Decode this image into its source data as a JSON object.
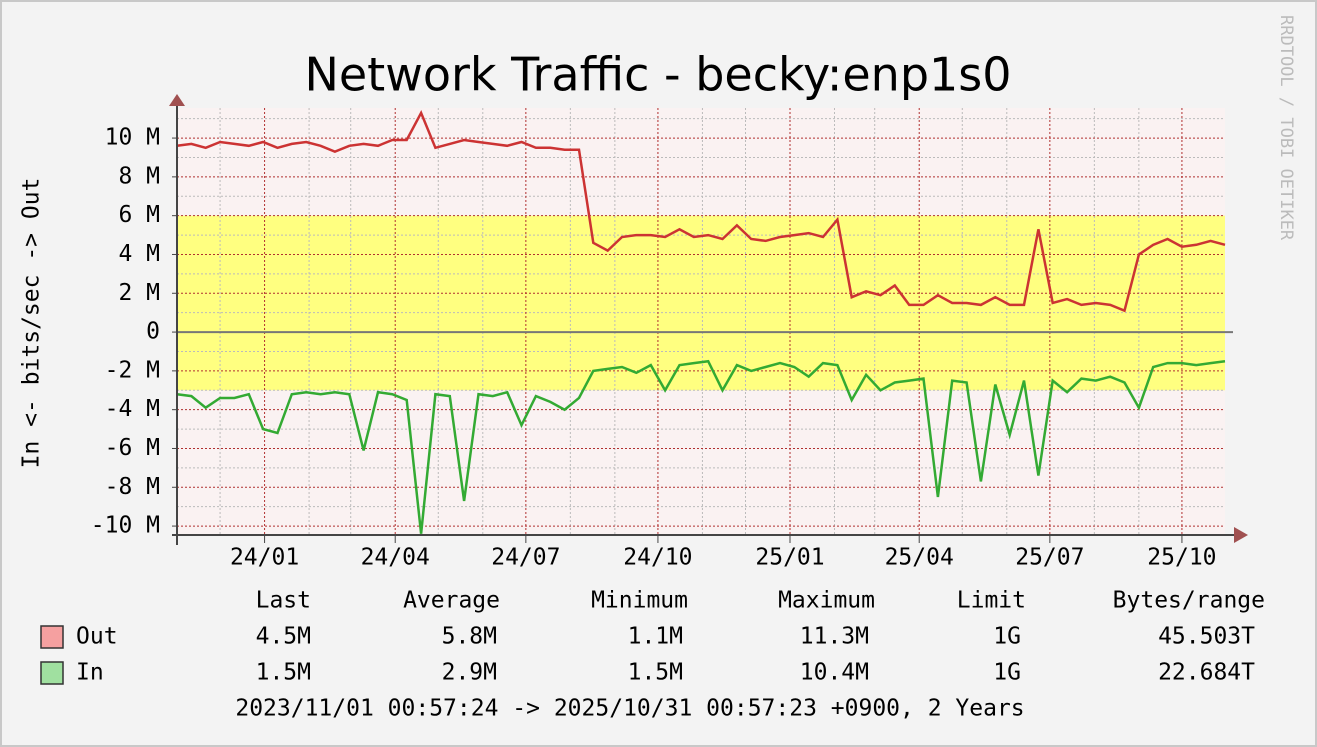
{
  "chart_data": {
    "type": "line",
    "title": "Network Traffic - becky:enp1s0",
    "y_label": "In <- bits/sec -> Out",
    "watermark": "RRDTOOL / TOBI OETIKER",
    "footer": "2023/11/01 00:57:24 -> 2025/10/31 00:57:23 +0900, 2 Years",
    "xlim": [
      0,
      730
    ],
    "xticks": [
      {
        "value": 61,
        "label": "24/01"
      },
      {
        "value": 152,
        "label": "24/04"
      },
      {
        "value": 243,
        "label": "24/07"
      },
      {
        "value": 335,
        "label": "24/10"
      },
      {
        "value": 427,
        "label": "25/01"
      },
      {
        "value": 517,
        "label": "25/04"
      },
      {
        "value": 608,
        "label": "25/07"
      },
      {
        "value": 700,
        "label": "25/10"
      }
    ],
    "xminorticks": [
      30,
      92,
      121,
      182,
      213,
      274,
      305,
      366,
      396,
      458,
      486,
      547,
      578,
      639,
      670
    ],
    "ylim": [
      -10.46,
      11.55
    ],
    "yticks": [
      {
        "value": -10,
        "label": "-10 M"
      },
      {
        "value": -8,
        "label": "-8 M"
      },
      {
        "value": -6,
        "label": "-6 M"
      },
      {
        "value": -4,
        "label": "-4 M"
      },
      {
        "value": -2,
        "label": "-2 M"
      },
      0,
      {
        "value": 2,
        "label": "2 M"
      },
      {
        "value": 4,
        "label": "4 M"
      },
      {
        "value": 6,
        "label": "6 M"
      },
      {
        "value": 8,
        "label": "8 M"
      },
      {
        "value": 10,
        "label": "10 M"
      }
    ],
    "yminorticks": [
      -9,
      -7,
      -5,
      -3,
      -1,
      1,
      3,
      5,
      7,
      9,
      11
    ],
    "grid": true,
    "highlight": {
      "range": [
        -3,
        6
      ],
      "color": "#ffff80"
    },
    "x": [
      0,
      10,
      20,
      30,
      40,
      50,
      60,
      70,
      80,
      90,
      100,
      110,
      120,
      130,
      140,
      150,
      160,
      170,
      180,
      190,
      200,
      210,
      220,
      230,
      240,
      250,
      260,
      270,
      280,
      290,
      300,
      310,
      320,
      330,
      340,
      350,
      360,
      370,
      380,
      390,
      400,
      410,
      420,
      430,
      440,
      450,
      460,
      470,
      480,
      490,
      500,
      510,
      520,
      530,
      540,
      550,
      560,
      570,
      580,
      590,
      600,
      610,
      620,
      630,
      640,
      650,
      660,
      670,
      680,
      690,
      700,
      710,
      720,
      730
    ],
    "series": [
      {
        "name": "Out",
        "color": "#cc3333",
        "legend_color": "#f5a0a0",
        "values": [
          9.6,
          9.7,
          9.5,
          9.8,
          9.7,
          9.6,
          9.8,
          9.5,
          9.7,
          9.8,
          9.6,
          9.3,
          9.6,
          9.7,
          9.6,
          9.9,
          9.9,
          11.3,
          9.5,
          9.7,
          9.9,
          9.8,
          9.7,
          9.6,
          9.8,
          9.5,
          9.5,
          9.4,
          9.4,
          4.6,
          4.2,
          4.9,
          5.0,
          5.0,
          4.9,
          5.3,
          4.9,
          5.0,
          4.8,
          5.5,
          4.8,
          4.7,
          4.9,
          5.0,
          5.1,
          4.9,
          5.8,
          1.8,
          2.1,
          1.9,
          2.4,
          1.4,
          1.4,
          1.9,
          1.5,
          1.5,
          1.4,
          1.8,
          1.4,
          1.4,
          5.3,
          1.5,
          1.7,
          1.4,
          1.5,
          1.4,
          1.1,
          4.0,
          4.5,
          4.8,
          4.4,
          4.5,
          4.7,
          4.5
        ],
        "stats": [
          "4.5M",
          "5.8M",
          "1.1M",
          "11.3M",
          "1G",
          "45.503T"
        ]
      },
      {
        "name": "In",
        "color": "#33aa33",
        "legend_color": "#a0e0a0",
        "values": [
          -3.2,
          -3.3,
          -3.9,
          -3.4,
          -3.4,
          -3.2,
          -5.0,
          -5.2,
          -3.2,
          -3.1,
          -3.2,
          -3.1,
          -3.2,
          -6.1,
          -3.1,
          -3.2,
          -3.5,
          -10.4,
          -3.2,
          -3.3,
          -8.7,
          -3.2,
          -3.3,
          -3.1,
          -4.8,
          -3.3,
          -3.6,
          -4.0,
          -3.4,
          -2.0,
          -1.9,
          -1.8,
          -2.1,
          -1.7,
          -3.0,
          -1.7,
          -1.6,
          -1.5,
          -3.0,
          -1.7,
          -2.0,
          -1.8,
          -1.6,
          -1.8,
          -2.3,
          -1.6,
          -1.7,
          -3.5,
          -2.2,
          -3.0,
          -2.6,
          -2.5,
          -2.4,
          -8.5,
          -2.5,
          -2.6,
          -7.7,
          -2.7,
          -5.3,
          -2.5,
          -7.4,
          -2.5,
          -3.1,
          -2.4,
          -2.5,
          -2.3,
          -2.6,
          -3.9,
          -1.8,
          -1.6,
          -1.6,
          -1.7,
          -1.6,
          -1.5
        ],
        "stats": [
          "1.5M",
          "2.9M",
          "1.5M",
          "10.4M",
          "1G",
          "22.684T"
        ]
      }
    ],
    "stat_headers": [
      "Last",
      "Average",
      "Minimum",
      "Maximum",
      "Limit",
      "Bytes/range"
    ]
  }
}
